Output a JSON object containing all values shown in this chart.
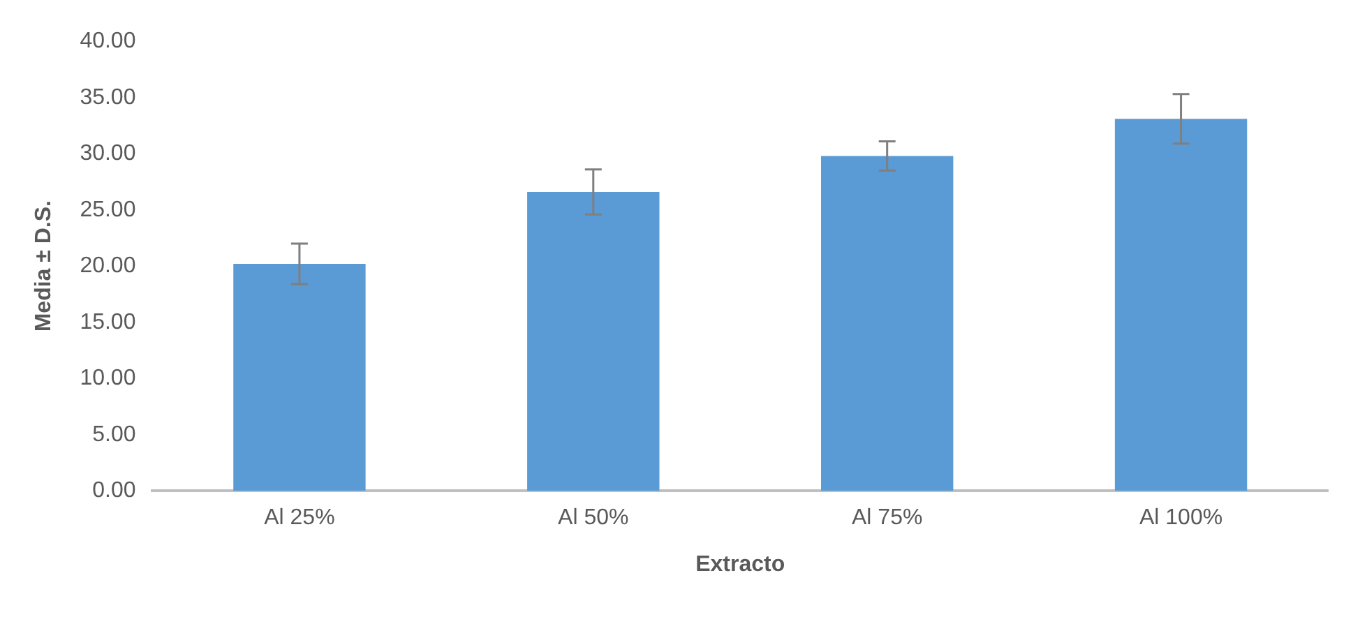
{
  "chart_data": {
    "type": "bar",
    "xlabel": "Extracto",
    "ylabel": "Media ± D.S.",
    "categories": [
      "Al 25%",
      "Al 50%",
      "Al 75%",
      "Al 100%"
    ],
    "values": [
      20.2,
      26.6,
      29.8,
      33.1
    ],
    "errors": [
      1.8,
      2.0,
      1.3,
      2.2
    ],
    "color": "#5b9bd5",
    "ylim": [
      0,
      40
    ],
    "yticks": [
      {
        "value": 0,
        "label": "0.00"
      },
      {
        "value": 5,
        "label": "5.00"
      },
      {
        "value": 10,
        "label": "10.00"
      },
      {
        "value": 15,
        "label": "15.00"
      },
      {
        "value": 20,
        "label": "20.00"
      },
      {
        "value": 25,
        "label": "25.00"
      },
      {
        "value": 30,
        "label": "30.00"
      },
      {
        "value": 35,
        "label": "35.00"
      },
      {
        "value": 40,
        "label": "40.00"
      }
    ],
    "grid": false,
    "legend": false
  }
}
